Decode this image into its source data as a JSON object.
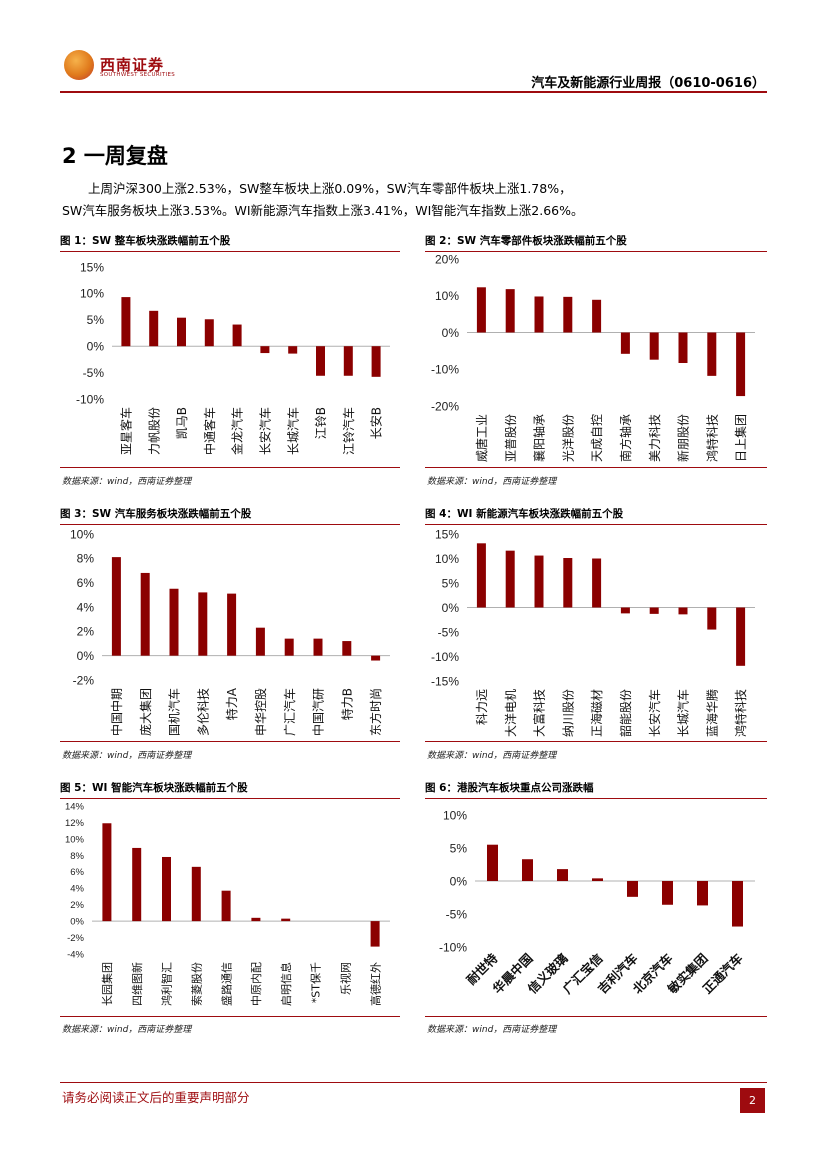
{
  "header": {
    "logo_cn": "西南证券",
    "logo_en": "SOUTHWEST SECURITIES",
    "report_title": "汽车及新能源行业周报（0610-0616）"
  },
  "section": {
    "title": "2 一周复盘",
    "para_line1": "上周沪深300上涨2.53%，SW整车板块上涨0.09%，SW汽车零部件板块上涨1.78%，",
    "para_line2": "SW汽车服务板块上涨3.53%。WI新能源汽车指数上涨3.41%，WI智能汽车指数上涨2.66%。"
  },
  "source_text": "数据来源：wind，西南证券整理",
  "colors": {
    "bar": "#8b0000",
    "accent": "#9e0b0f"
  },
  "chart_data": [
    {
      "title": "图 1：SW 整车板块涨跌幅前五个股",
      "type": "bar",
      "categories": [
        "亚星客车",
        "力帆股份",
        "凯马B",
        "中通客车",
        "金龙汽车",
        "长安汽车",
        "长城汽车",
        "江铃B",
        "江铃汽车",
        "长安B"
      ],
      "values": [
        9.3,
        6.7,
        5.4,
        5.1,
        4.1,
        -1.3,
        -1.4,
        -5.6,
        -5.6,
        -5.8
      ],
      "ylim": [
        -10,
        15
      ],
      "ticks": [
        15,
        10,
        5,
        0,
        -5,
        -10
      ]
    },
    {
      "title": "图 2：SW 汽车零部件板块涨跌幅前五个股",
      "type": "bar",
      "categories": [
        "威唐工业",
        "亚普股份",
        "襄阳轴承",
        "光洋股份",
        "天成自控",
        "南方轴承",
        "美力科技",
        "新朋股份",
        "鸿特科技",
        "日上集团"
      ],
      "values": [
        12.3,
        11.8,
        9.8,
        9.7,
        8.9,
        -5.8,
        -7.4,
        -8.3,
        -11.8,
        -17.3
      ],
      "ylim": [
        -20,
        20
      ],
      "ticks": [
        20,
        10,
        0,
        -10,
        -20
      ]
    },
    {
      "title": "图 3：SW 汽车服务板块涨跌幅前五个股",
      "type": "bar",
      "categories": [
        "中国中期",
        "庞大集团",
        "国机汽车",
        "多伦科技",
        "特力A",
        "申华控股",
        "广汇汽车",
        "中国汽研",
        "特力B",
        "东方时尚"
      ],
      "values": [
        8.1,
        6.8,
        5.5,
        5.2,
        5.1,
        2.3,
        1.4,
        1.4,
        1.2,
        -0.4
      ],
      "ylim": [
        -2,
        10
      ],
      "ticks": [
        10,
        8,
        6,
        4,
        2,
        0,
        -2
      ]
    },
    {
      "title": "图 4：WI 新能源汽车板块涨跌幅前五个股",
      "type": "bar",
      "categories": [
        "科力远",
        "大洋电机",
        "大富科技",
        "纳川股份",
        "正海磁材",
        "韶能股份",
        "长安汽车",
        "长城汽车",
        "蓝海华腾",
        "鸿特科技"
      ],
      "values": [
        13.1,
        11.6,
        10.6,
        10.1,
        10.0,
        -1.2,
        -1.3,
        -1.4,
        -4.5,
        -11.9
      ],
      "ylim": [
        -15,
        15
      ],
      "ticks": [
        15,
        10,
        5,
        0,
        -5,
        -10,
        -15
      ]
    },
    {
      "title": "图 5：WI 智能汽车板块涨跌幅前五个股",
      "type": "bar",
      "categories": [
        "长园集团",
        "四维图新",
        "鸿利智汇",
        "索菱股份",
        "盛路通信",
        "中原内配",
        "启明信息",
        "*ST保千",
        "乐视网",
        "高德红外"
      ],
      "values": [
        11.9,
        8.9,
        7.8,
        6.6,
        3.7,
        0.4,
        0.3,
        0.0,
        0.0,
        -3.1
      ],
      "ylim": [
        -4,
        14
      ],
      "ticks": [
        14,
        12,
        10,
        8,
        6,
        4,
        2,
        0,
        -2,
        -4
      ]
    },
    {
      "title": "图 6：港股汽车板块重点公司涨跌幅",
      "type": "bar",
      "categories": [
        "耐世特",
        "华晨中国",
        "信义玻璃",
        "广汇宝信",
        "吉利汽车",
        "北京汽车",
        "敏实集团",
        "正通汽车"
      ],
      "values": [
        5.5,
        3.3,
        1.8,
        0.4,
        -2.4,
        -3.6,
        -3.7,
        -6.9
      ],
      "ylim": [
        -10,
        10
      ],
      "ticks": [
        10,
        5,
        0,
        -5,
        -10
      ]
    }
  ],
  "footer": {
    "disclaimer": "请务必阅读正文后的重要声明部分",
    "page": "2"
  }
}
